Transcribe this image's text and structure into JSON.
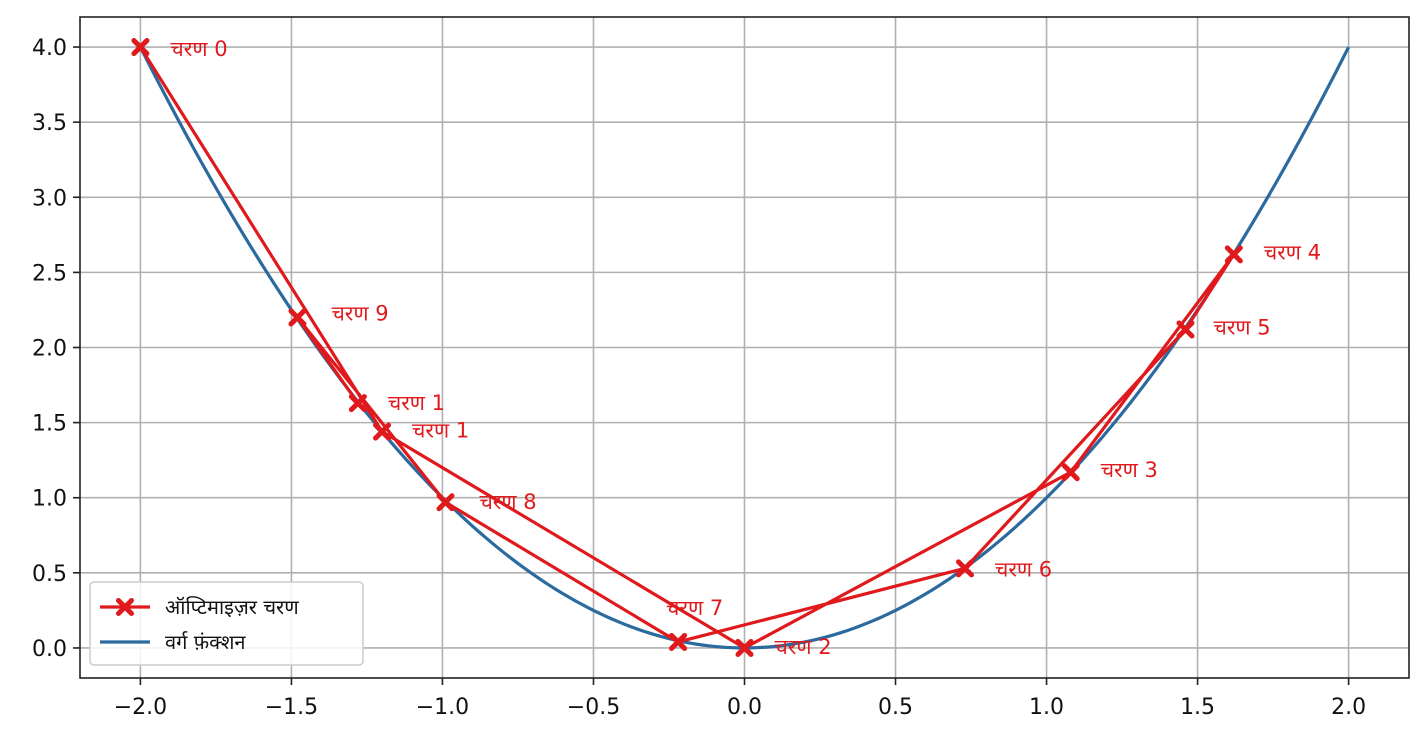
{
  "chart_data": {
    "type": "line",
    "title": "",
    "xlabel": "",
    "ylabel": "",
    "xlim": [
      -2.2,
      2.2
    ],
    "ylim": [
      -0.2,
      4.2
    ],
    "x_ticks": [
      -2.0,
      -1.5,
      -1.0,
      -0.5,
      0.0,
      0.5,
      1.0,
      1.5,
      2.0
    ],
    "y_ticks": [
      0.0,
      0.5,
      1.0,
      1.5,
      2.0,
      2.5,
      3.0,
      3.5,
      4.0
    ],
    "x_tick_labels": [
      "−2.0",
      "−1.5",
      "−1.0",
      "−0.5",
      "0.0",
      "0.5",
      "1.0",
      "1.5",
      "2.0"
    ],
    "y_tick_labels": [
      "0.0",
      "0.5",
      "1.0",
      "1.5",
      "2.0",
      "2.5",
      "3.0",
      "3.5",
      "4.0"
    ],
    "grid": true,
    "legend_position": "lower-left",
    "series": [
      {
        "name": "ऑप्टिमाइज़र चरण",
        "color": "#e0191c",
        "marker": "x-filled",
        "points": [
          {
            "x": -2.0,
            "y": 4.0,
            "label": "चरण 0"
          },
          {
            "x": -1.2,
            "y": 1.44,
            "label": "चरण 1"
          },
          {
            "x": 0.0,
            "y": 0.0,
            "label": "चरण 2"
          },
          {
            "x": 1.08,
            "y": 1.17,
            "label": "चरण 3"
          },
          {
            "x": 1.62,
            "y": 2.62,
            "label": "चरण 4"
          },
          {
            "x": 1.46,
            "y": 2.12,
            "label": "चरण 5"
          },
          {
            "x": 0.73,
            "y": 0.53,
            "label": "चरण 6"
          },
          {
            "x": -0.22,
            "y": 0.04,
            "label": "चरण 7"
          },
          {
            "x": -0.99,
            "y": 0.97,
            "label": "चरण 8"
          },
          {
            "x": -1.48,
            "y": 2.2,
            "label": "चरण 9"
          },
          {
            "x": -1.28,
            "y": 1.63,
            "label": "चरण 1"
          }
        ]
      },
      {
        "name": "वर्ग फ़ंक्शन",
        "color": "#2a6a9e",
        "function": "x^2",
        "domain": [
          -2.0,
          2.0
        ]
      }
    ]
  }
}
